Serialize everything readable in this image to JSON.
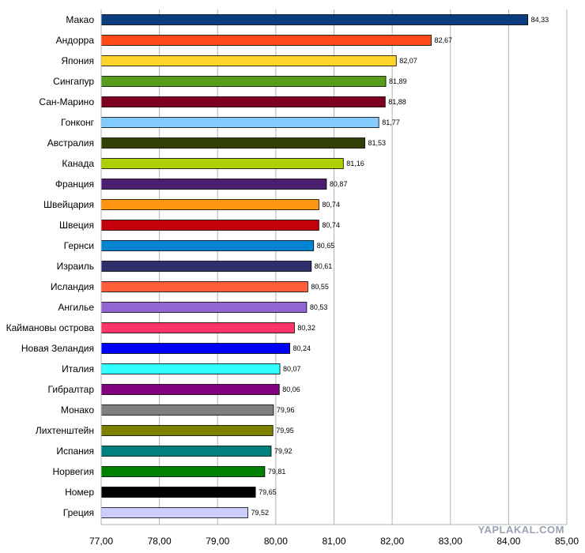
{
  "chart_data": {
    "type": "bar",
    "orientation": "horizontal",
    "categories": [
      "Макао",
      "Андорра",
      "Япония",
      "Сингапур",
      "Сан-Марино",
      "Гонконг",
      "Австралия",
      "Канада",
      "Франция",
      "Швейцария",
      "Швеция",
      "Гернси",
      "Израиль",
      "Исландия",
      "Ангилье",
      "Каймановы острова",
      "Новая Зеландия",
      "Италия",
      "Гибралтар",
      "Монако",
      "Лихтенштейн",
      "Испания",
      "Норвегия",
      "Номер",
      "Греция"
    ],
    "values": [
      84.33,
      82.67,
      82.07,
      81.89,
      81.88,
      81.77,
      81.53,
      81.16,
      80.87,
      80.74,
      80.74,
      80.65,
      80.61,
      80.55,
      80.53,
      80.32,
      80.24,
      80.07,
      80.06,
      79.96,
      79.95,
      79.92,
      79.81,
      79.65,
      79.52
    ],
    "value_labels": [
      "84,33",
      "82,67",
      "82,07",
      "81,89",
      "81,88",
      "81,77",
      "81,53",
      "81,16",
      "80,87",
      "80,74",
      "80,74",
      "80,65",
      "80,61",
      "80,55",
      "80,53",
      "80,32",
      "80,24",
      "80,07",
      "80,06",
      "79,96",
      "79,95",
      "79,92",
      "79,81",
      "79,65",
      "79,52"
    ],
    "colors": [
      "#0a3d7e",
      "#ff4a17",
      "#ffd42a",
      "#579d1c",
      "#7e0021",
      "#83caff",
      "#314004",
      "#aecf00",
      "#4b1f6f",
      "#ff950e",
      "#c5000b",
      "#0084d1",
      "#2f2f6e",
      "#ff5e3a",
      "#9265d2",
      "#ff3366",
      "#0000ff",
      "#33ffff",
      "#800080",
      "#808080",
      "#808000",
      "#008080",
      "#008000",
      "#000000",
      "#ccccff"
    ],
    "xlim": [
      77,
      85
    ],
    "xticks": [
      "77,00",
      "78,00",
      "79,00",
      "80,00",
      "81,00",
      "82,00",
      "83,00",
      "84,00",
      "85,00"
    ],
    "grid": true,
    "title": "",
    "xlabel": "",
    "ylabel": ""
  },
  "watermark": "YAPLAKAL.COM"
}
